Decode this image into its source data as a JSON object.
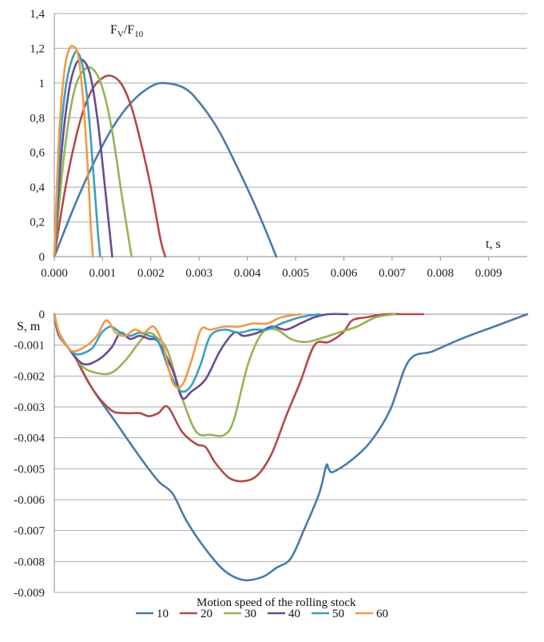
{
  "chart_data": [
    {
      "type": "line",
      "title": "",
      "ylabel_main": "F",
      "ylabel_sub1": "V",
      "ylabel_mid": "/F",
      "ylabel_sub2": "10",
      "xlabel": "t, s",
      "xlim": [
        0,
        0.0098
      ],
      "ylim": [
        0,
        1.4
      ],
      "xticks": [
        "0.000",
        "0.001",
        "0.002",
        "0.003",
        "0.004",
        "0.005",
        "0.006",
        "0.007",
        "0.008",
        "0.009"
      ],
      "xtick_values": [
        0,
        0.001,
        0.002,
        0.003,
        0.004,
        0.005,
        0.006,
        0.007,
        0.008,
        0.009
      ],
      "yticks": [
        "0",
        "0,2",
        "0,4",
        "0,6",
        "0,8",
        "1",
        "1,2",
        "1,4"
      ],
      "ytick_values": [
        0,
        0.2,
        0.4,
        0.6,
        0.8,
        1.0,
        1.2,
        1.4
      ],
      "grid": true,
      "series": [
        {
          "name": "10",
          "color": "#4a7aa8",
          "x": [
            0,
            0.0004,
            0.0008,
            0.0012,
            0.0016,
            0.002,
            0.0023,
            0.0027,
            0.003,
            0.0034,
            0.0038,
            0.0042,
            0.0046
          ],
          "y": [
            0,
            0.28,
            0.53,
            0.74,
            0.89,
            0.98,
            1.0,
            0.97,
            0.89,
            0.73,
            0.51,
            0.27,
            0
          ]
        },
        {
          "name": "20",
          "color": "#b34a47",
          "x": [
            0,
            0.0002,
            0.0004,
            0.0006,
            0.0008,
            0.001,
            0.0012,
            0.0014,
            0.0016,
            0.0018,
            0.002,
            0.0022,
            0.0023
          ],
          "y": [
            0,
            0.35,
            0.63,
            0.84,
            0.97,
            1.03,
            1.04,
            0.99,
            0.86,
            0.65,
            0.4,
            0.1,
            0
          ]
        },
        {
          "name": "30",
          "color": "#93b553",
          "x": [
            0,
            0.0002,
            0.0004,
            0.0006,
            0.0008,
            0.001,
            0.0012,
            0.0014,
            0.0016
          ],
          "y": [
            0,
            0.58,
            0.94,
            1.07,
            1.08,
            0.97,
            0.72,
            0.35,
            0
          ]
        },
        {
          "name": "40",
          "color": "#6a4a93",
          "x": [
            0,
            0.00015,
            0.0003,
            0.00045,
            0.0006,
            0.00075,
            0.0009,
            0.00105,
            0.0012
          ],
          "y": [
            0,
            0.6,
            0.95,
            1.11,
            1.13,
            1.04,
            0.78,
            0.4,
            0
          ]
        },
        {
          "name": "50",
          "color": "#3a9fbd",
          "x": [
            0,
            0.00012,
            0.00025,
            0.0004,
            0.0005,
            0.0006,
            0.0007,
            0.0008,
            0.0009,
            0.00095
          ],
          "y": [
            0,
            0.65,
            1.0,
            1.16,
            1.17,
            1.08,
            0.86,
            0.52,
            0.15,
            0
          ]
        },
        {
          "name": "60",
          "color": "#f09a45",
          "x": [
            0,
            0.0001,
            0.0002,
            0.0003,
            0.0004,
            0.0005,
            0.0006,
            0.0007,
            0.00075,
            0.0008
          ],
          "y": [
            0,
            0.7,
            1.05,
            1.19,
            1.21,
            1.15,
            0.9,
            0.48,
            0.2,
            0
          ]
        }
      ]
    },
    {
      "type": "line",
      "title": "",
      "ylabel": "S, m",
      "ylim": [
        -0.009,
        0
      ],
      "yticks": [
        "0",
        "-0.001",
        "-0.002",
        "-0.003",
        "-0.004",
        "-0.005",
        "-0.006",
        "-0.007",
        "-0.008",
        "-0.009"
      ],
      "ytick_values": [
        0,
        -0.001,
        -0.002,
        -0.003,
        -0.004,
        -0.005,
        -0.006,
        -0.007,
        -0.008,
        -0.009
      ],
      "xlim": [
        0,
        1
      ],
      "grid": true,
      "legend": {
        "title": "Motion speed of the rolling stock",
        "placement": "bottom"
      },
      "series": [
        {
          "name": "10",
          "color": "#4a7aa8",
          "x": [
            0,
            0.01,
            0.04,
            0.08,
            0.13,
            0.18,
            0.22,
            0.25,
            0.28,
            0.32,
            0.36,
            0.4,
            0.44,
            0.47,
            0.5,
            0.53,
            0.56,
            0.575,
            0.58,
            0.59,
            0.63,
            0.67,
            0.71,
            0.75,
            0.8,
            0.86,
            0.93,
            1.0
          ],
          "y": [
            0,
            -0.0007,
            -0.0013,
            -0.0024,
            -0.0035,
            -0.0046,
            -0.0054,
            -0.0058,
            -0.0067,
            -0.0076,
            -0.0083,
            -0.0086,
            -0.0085,
            -0.0082,
            -0.0079,
            -0.0069,
            -0.0058,
            -0.0049,
            -0.005,
            -0.0051,
            -0.0047,
            -0.0041,
            -0.0031,
            -0.0015,
            -0.0012,
            -0.0008,
            -0.0004,
            0
          ]
        },
        {
          "name": "20",
          "color": "#b34a47",
          "x": [
            0,
            0.01,
            0.04,
            0.08,
            0.12,
            0.15,
            0.18,
            0.2,
            0.22,
            0.24,
            0.27,
            0.3,
            0.32,
            0.34,
            0.37,
            0.4,
            0.43,
            0.46,
            0.49,
            0.52,
            0.55,
            0.58,
            0.61,
            0.63,
            0.66,
            0.7,
            0.74,
            0.78
          ],
          "y": [
            0,
            -0.0007,
            -0.0013,
            -0.0024,
            -0.0031,
            -0.0032,
            -0.0032,
            -0.0033,
            -0.0032,
            -0.003,
            -0.0038,
            -0.0042,
            -0.0043,
            -0.0048,
            -0.0053,
            -0.0054,
            -0.0052,
            -0.0045,
            -0.0033,
            -0.0022,
            -0.001,
            -0.0009,
            -0.0006,
            -0.0002,
            -0.0001,
            0,
            0,
            0
          ]
        },
        {
          "name": "30",
          "color": "#93b553",
          "x": [
            0,
            0.01,
            0.03,
            0.06,
            0.09,
            0.12,
            0.15,
            0.18,
            0.2,
            0.22,
            0.24,
            0.27,
            0.3,
            0.33,
            0.36,
            0.38,
            0.41,
            0.44,
            0.47,
            0.5,
            0.53,
            0.56,
            0.6,
            0.64,
            0.68,
            0.72
          ],
          "y": [
            0,
            -0.0006,
            -0.0011,
            -0.0017,
            -0.0019,
            -0.0019,
            -0.0015,
            -0.0009,
            -0.0006,
            -0.0008,
            -0.0012,
            -0.0027,
            -0.0038,
            -0.0039,
            -0.0039,
            -0.0034,
            -0.0016,
            -0.0006,
            -0.0005,
            -0.0008,
            -0.0009,
            -0.0008,
            -0.0006,
            -0.0004,
            -0.0001,
            0
          ]
        },
        {
          "name": "40",
          "color": "#6a4a93",
          "x": [
            0,
            0.01,
            0.03,
            0.06,
            0.09,
            0.12,
            0.14,
            0.16,
            0.18,
            0.2,
            0.22,
            0.25,
            0.27,
            0.29,
            0.32,
            0.35,
            0.38,
            0.4,
            0.43,
            0.46,
            0.49,
            0.52,
            0.55,
            0.58,
            0.62
          ],
          "y": [
            0,
            -0.0006,
            -0.0011,
            -0.0016,
            -0.0015,
            -0.0011,
            -0.0006,
            -0.0008,
            -0.0007,
            -0.0008,
            -0.0009,
            -0.0018,
            -0.0027,
            -0.0025,
            -0.0021,
            -0.0012,
            -0.0006,
            -0.0007,
            -0.0006,
            -0.0004,
            -0.0005,
            -0.0003,
            -0.0001,
            0,
            0
          ]
        },
        {
          "name": "50",
          "color": "#3a9fbd",
          "x": [
            0,
            0.01,
            0.03,
            0.05,
            0.08,
            0.1,
            0.12,
            0.14,
            0.16,
            0.18,
            0.2,
            0.22,
            0.25,
            0.27,
            0.29,
            0.31,
            0.33,
            0.36,
            0.39,
            0.42,
            0.45,
            0.48,
            0.52,
            0.56
          ],
          "y": [
            0,
            -0.0006,
            -0.0011,
            -0.0013,
            -0.0011,
            -0.0006,
            -0.0004,
            -0.0006,
            -0.0007,
            -0.0006,
            -0.0007,
            -0.0009,
            -0.0021,
            -0.0025,
            -0.0023,
            -0.0016,
            -0.0007,
            -0.0005,
            -0.0006,
            -0.0005,
            -0.0005,
            -0.0003,
            -0.0001,
            0
          ]
        },
        {
          "name": "60",
          "color": "#f09a45",
          "x": [
            0,
            0.01,
            0.02,
            0.04,
            0.07,
            0.09,
            0.11,
            0.13,
            0.15,
            0.17,
            0.19,
            0.21,
            0.23,
            0.25,
            0.27,
            0.29,
            0.31,
            0.33,
            0.36,
            0.39,
            0.42,
            0.45,
            0.48,
            0.52
          ],
          "y": [
            0,
            -0.0006,
            -0.0009,
            -0.0012,
            -0.001,
            -0.0007,
            -0.0002,
            -0.0006,
            -0.0007,
            -0.0005,
            -0.0006,
            -0.0004,
            -0.001,
            -0.0022,
            -0.0023,
            -0.0015,
            -0.0005,
            -0.0005,
            -0.0004,
            -0.0004,
            -0.0003,
            -0.0003,
            -0.0001,
            0
          ]
        }
      ]
    }
  ]
}
